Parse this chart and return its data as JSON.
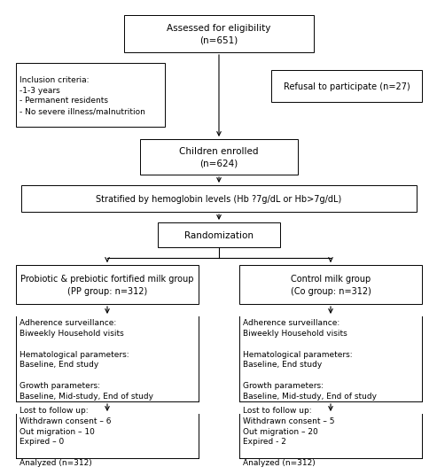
{
  "bg_color": "#ffffff",
  "box_color": "#ffffff",
  "border_color": "#000000",
  "text_color": "#000000",
  "arrow_color": "#000000",
  "font_size": 7.5,
  "title_text": "Assessed for eligibility\n(n=651)",
  "inclusion_text": "Inclusion criteria:\n-1-3 years\n- Permanent residents\n- No severe illness/malnutrition",
  "refusal_text": "Refusal to participate (n=27)",
  "enrolled_text": "Children enrolled\n(n=624)",
  "stratified_text": "Stratified by hemoglobin levels (Hb ?7g/dL or Hb>7g/dL)",
  "randomization_text": "Randomization",
  "pp_group_text": "Probiotic & prebiotic fortified milk group\n(PP group: n=312)",
  "co_group_text": "Control milk group\n(Co group: n=312)",
  "pp_followup_text": "Adherence surveillance:\nBiweekly Household visits\n\nHematological parameters:\nBaseline, End study\n\nGrowth parameters:\nBaseline, Mid-study, End of study",
  "co_followup_text": "Adherence surveillance:\nBiweekly Household visits\n\nHematological parameters:\nBaseline, End study\n\nGrowth parameters:\nBaseline, Mid-study, End of study",
  "pp_lost_text": "Lost to follow up:\nWithdrawn consent – 6\nOut migration – 10\nExpired – 0\n\nAnalyzed (n=312)",
  "co_lost_text": "Lost to follow up:\nWithdrawn consent – 5\nOut migration – 20\nExpired - 2\n\nAnalyzed (n=312)"
}
